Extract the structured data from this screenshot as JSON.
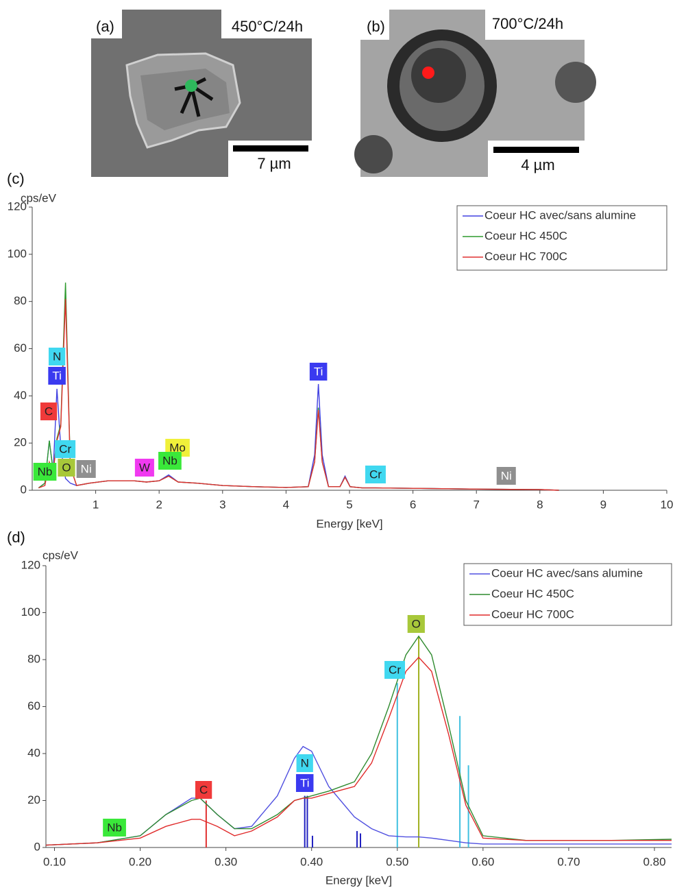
{
  "panels": [
    {
      "label": "(a)",
      "condition": "450°C/24h",
      "scale_bar": "7 µm"
    },
    {
      "label": "(b)",
      "condition": "700°C/24h",
      "scale_bar": "4 µm"
    }
  ],
  "chart_data": [
    {
      "type": "line",
      "panel_label": "(c)",
      "y_label": "cps/eV",
      "x_label": "Energy [keV]",
      "xlim": [
        0,
        10
      ],
      "ylim": [
        0,
        120
      ],
      "xticks": [
        1,
        2,
        3,
        4,
        5,
        6,
        7,
        8,
        9,
        10
      ],
      "yticks": [
        0,
        20,
        40,
        60,
        80,
        100,
        120
      ],
      "legend": "upper right",
      "x": [
        0.1,
        0.2,
        0.27,
        0.33,
        0.39,
        0.45,
        0.525,
        0.6,
        0.7,
        0.9,
        1.2,
        1.6,
        1.8,
        2.0,
        2.15,
        2.3,
        2.6,
        3.0,
        3.5,
        4.0,
        4.35,
        4.45,
        4.51,
        4.57,
        4.67,
        4.85,
        4.93,
        5.01,
        5.2,
        5.41,
        6.0,
        7.0,
        8.0,
        8.3
      ],
      "series": [
        {
          "name": "Coeur HC avec/sans alumine",
          "color": "#4040e0",
          "values": [
            1,
            3,
            21,
            8,
            43,
            18,
            5,
            3,
            2,
            3,
            4,
            4,
            3.5,
            4,
            6.5,
            3.5,
            3,
            2,
            1.5,
            1.2,
            1.5,
            15,
            45,
            15,
            1.5,
            1.5,
            6,
            1.5,
            1,
            1,
            0.8,
            0.5,
            0.3,
            0
          ]
        },
        {
          "name": "Coeur HC 450C",
          "color": "#2e9a2e",
          "values": [
            1,
            3,
            21,
            8,
            22,
            28,
            88,
            10,
            2,
            3,
            4,
            4,
            3.5,
            4,
            6,
            3.5,
            3,
            2,
            1.5,
            1.2,
            1.5,
            12,
            35,
            12,
            1.5,
            1.5,
            5.5,
            1.5,
            1,
            1,
            0.8,
            0.5,
            0.3,
            0
          ]
        },
        {
          "name": "Coeur HC 700C",
          "color": "#e03030",
          "values": [
            1,
            2,
            12,
            8,
            21,
            27,
            81,
            10,
            2,
            3,
            4,
            4,
            3.5,
            4,
            6,
            3.5,
            3,
            2,
            1.5,
            1.2,
            1.5,
            12,
            34,
            12,
            1.5,
            1.5,
            5.5,
            1.5,
            1,
            1,
            0.8,
            0.5,
            0.3,
            0
          ]
        }
      ],
      "annotations": [
        {
          "text": "N",
          "x": 0.39,
          "color": "#40d8f0"
        },
        {
          "text": "Ti",
          "x": 0.39,
          "color": "#3a3af0"
        },
        {
          "text": "C",
          "x": 0.26,
          "color": "#f03a3a"
        },
        {
          "text": "Cr",
          "x": 0.52,
          "color": "#40d8f0"
        },
        {
          "text": "O",
          "x": 0.54,
          "color": "#a8c83a"
        },
        {
          "text": "Nb",
          "x": 0.2,
          "color": "#3ae83a"
        },
        {
          "text": "Ni",
          "x": 0.85,
          "color": "#8f8f8f"
        },
        {
          "text": "W",
          "x": 1.77,
          "color": "#f03af0"
        },
        {
          "text": "Mo",
          "x": 2.29,
          "color": "#f0f03a"
        },
        {
          "text": "Nb",
          "x": 2.17,
          "color": "#3ae83a"
        },
        {
          "text": "Ti",
          "x": 4.51,
          "color": "#3a3af0"
        },
        {
          "text": "Cr",
          "x": 5.41,
          "color": "#40d8f0"
        },
        {
          "text": "Ni",
          "x": 7.47,
          "color": "#8f8f8f"
        }
      ]
    },
    {
      "type": "line",
      "panel_label": "(d)",
      "y_label": "cps/eV",
      "x_label": "Energy [keV]",
      "xlim": [
        0.09,
        0.82
      ],
      "ylim": [
        0,
        120
      ],
      "xticks": [
        {
          "value": 0.1,
          "label": "0.10"
        },
        {
          "value": 0.2,
          "label": "0.20"
        },
        {
          "value": 0.3,
          "label": "0.30"
        },
        {
          "value": 0.4,
          "label": "0.40"
        },
        {
          "value": 0.5,
          "label": "0.50"
        },
        {
          "value": 0.6,
          "label": "0.60"
        },
        {
          "value": 0.7,
          "label": "0.70"
        },
        {
          "value": 0.8,
          "label": "0.80"
        }
      ],
      "yticks": [
        0,
        20,
        40,
        60,
        80,
        100,
        120
      ],
      "legend": "upper right",
      "x": [
        0.09,
        0.15,
        0.2,
        0.23,
        0.26,
        0.27,
        0.29,
        0.31,
        0.33,
        0.36,
        0.38,
        0.39,
        0.4,
        0.42,
        0.45,
        0.47,
        0.49,
        0.51,
        0.525,
        0.54,
        0.56,
        0.58,
        0.6,
        0.65,
        0.7,
        0.75,
        0.82
      ],
      "series": [
        {
          "name": "Coeur HC avec/sans alumine",
          "color": "#5050e0",
          "values": [
            1,
            2,
            5,
            14,
            21,
            21,
            14,
            8,
            9,
            22,
            38,
            43,
            41,
            26,
            13,
            8,
            5,
            4.5,
            4.5,
            4,
            3,
            2,
            1.5,
            1.5,
            1.5,
            1.5,
            1.5
          ]
        },
        {
          "name": "Coeur HC 450C",
          "color": "#2e8a2e",
          "values": [
            1,
            2,
            5,
            14,
            20,
            21,
            14,
            8,
            8,
            14,
            20,
            21,
            22,
            24,
            28,
            40,
            60,
            82,
            90,
            82,
            52,
            20,
            5,
            3,
            3,
            3,
            3.5
          ]
        },
        {
          "name": "Coeur HC 700C",
          "color": "#e02a2a",
          "values": [
            1,
            2,
            4,
            9,
            12,
            12,
            9,
            5,
            7,
            13,
            20,
            21,
            21,
            23,
            26,
            36,
            55,
            75,
            81,
            75,
            48,
            18,
            4,
            3,
            3,
            3,
            3
          ]
        }
      ],
      "markers": {
        "x": [
          0.277,
          0.392,
          0.395,
          0.401,
          0.453,
          0.457,
          0.5,
          0.525,
          0.573,
          0.583
        ],
        "values": [
          20,
          22,
          22,
          5,
          7,
          6,
          70,
          90,
          56,
          35
        ],
        "colors": [
          "#e03030",
          "#2020c0",
          "#2020c0",
          "#2020c0",
          "#2020c0",
          "#2020c0",
          "#40c0e0",
          "#a0b020",
          "#40c0e0",
          "#40c0e0"
        ]
      },
      "annotations": [
        {
          "text": "Nb",
          "x": 0.17,
          "color": "#3ae83a"
        },
        {
          "text": "C",
          "x": 0.274,
          "color": "#f03a3a"
        },
        {
          "text": "N",
          "x": 0.392,
          "color": "#40d8f0"
        },
        {
          "text": "Ti",
          "x": 0.392,
          "color": "#3a3af0"
        },
        {
          "text": "Cr",
          "x": 0.497,
          "color": "#40d8f0"
        },
        {
          "text": "O",
          "x": 0.522,
          "color": "#a8c83a"
        }
      ]
    }
  ]
}
